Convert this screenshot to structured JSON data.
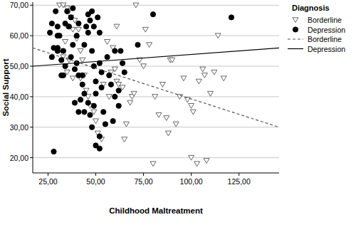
{
  "chart_data": {
    "type": "scatter",
    "x_label": "Childhood Maltreatment",
    "y_label": "Social Support",
    "legend_title": "Diagnosis",
    "legend": "right",
    "grid": true,
    "xlim": [
      17,
      146
    ],
    "ylim": [
      15,
      71
    ],
    "xticks": [
      {
        "value": 25,
        "label": "25,00"
      },
      {
        "value": 50,
        "label": "50,00"
      },
      {
        "value": 75,
        "label": "75,00"
      },
      {
        "value": 100,
        "label": "100,00"
      },
      {
        "value": 125,
        "label": "125,00"
      }
    ],
    "yticks": [
      {
        "value": 20,
        "label": "20,00"
      },
      {
        "value": 30,
        "label": "30,00"
      },
      {
        "value": 40,
        "label": "40,00"
      },
      {
        "value": 50,
        "label": "50,00"
      },
      {
        "value": 60,
        "label": "60,00"
      },
      {
        "value": 70,
        "label": "70,00"
      }
    ],
    "series": [
      {
        "name": "Borderline",
        "type": "scatter",
        "marker": "triangle",
        "color": "#555555",
        "x": [
          31,
          33,
          35,
          36,
          39,
          38,
          37,
          35,
          34,
          32,
          33,
          34,
          36,
          35,
          40,
          41,
          42,
          43,
          44,
          45,
          46,
          47,
          49,
          50,
          51,
          53,
          54,
          56,
          57,
          58,
          59,
          60,
          61,
          62,
          64,
          65,
          66,
          68,
          69,
          70,
          71,
          73,
          75,
          76,
          78,
          80,
          81,
          83,
          85,
          87,
          89,
          90,
          92,
          94,
          96,
          98,
          100,
          101,
          103,
          104,
          106,
          107,
          108,
          110,
          112,
          114,
          117,
          100,
          61,
          88,
          42,
          38
        ],
        "values": [
          70,
          70,
          69,
          68,
          65,
          62,
          66,
          63,
          58,
          55,
          53,
          50,
          52,
          48,
          59,
          62,
          55,
          52,
          47,
          42,
          40,
          37,
          35,
          32,
          28,
          26,
          44,
          58,
          40,
          48,
          56,
          49,
          45,
          44,
          43,
          26,
          31,
          38,
          40,
          41,
          70,
          52,
          50,
          62,
          57,
          18,
          40,
          34,
          44,
          33,
          52,
          52,
          31,
          40,
          46,
          39,
          20,
          35,
          18,
          45,
          49,
          47,
          19,
          41,
          48,
          60,
          46,
          37,
          63,
          28,
          46,
          46
        ]
      },
      {
        "name": "Depression",
        "type": "scatter",
        "marker": "circle",
        "color": "#000000",
        "x": [
          26,
          27,
          28,
          27,
          29,
          30,
          30,
          30,
          32,
          32,
          33,
          33,
          34,
          31,
          34,
          35,
          36,
          37,
          38,
          38,
          37,
          39,
          39,
          40,
          41,
          41,
          43,
          43,
          44,
          44,
          45,
          46,
          46,
          47,
          48,
          48,
          49,
          49,
          50,
          50,
          51,
          52,
          52,
          53,
          53,
          54,
          55,
          56,
          57,
          58,
          59,
          60,
          60,
          62,
          62,
          63,
          64,
          65,
          46,
          47,
          48,
          50,
          52,
          52,
          49,
          28,
          41,
          42,
          80,
          72,
          121,
          40,
          44,
          30
        ],
        "values": [
          61,
          64,
          56,
          53,
          68,
          60,
          63,
          56,
          52,
          47,
          47,
          55,
          50,
          60,
          64,
          68,
          63,
          66,
          69,
          57,
          53,
          49,
          38,
          60,
          64,
          47,
          47,
          44,
          41,
          57,
          63,
          61,
          67,
          65,
          68,
          55,
          63,
          50,
          45,
          41,
          66,
          61,
          51,
          48,
          43,
          35,
          31,
          53,
          47,
          44,
          32,
          55,
          40,
          37,
          42,
          55,
          51,
          48,
          38,
          34,
          30,
          24,
          23,
          27,
          37,
          22,
          35,
          39,
          67,
          57,
          66,
          51,
          35,
          55
        ]
      },
      {
        "name": "Borderline",
        "type": "line",
        "line_style": "dashed",
        "color": "#555555",
        "x": [
          17,
          146
        ],
        "values": [
          56,
          30
        ]
      },
      {
        "name": "Depression",
        "type": "line",
        "line_style": "solid",
        "color": "#000000",
        "x": [
          17,
          146
        ],
        "values": [
          50,
          56
        ]
      }
    ]
  }
}
